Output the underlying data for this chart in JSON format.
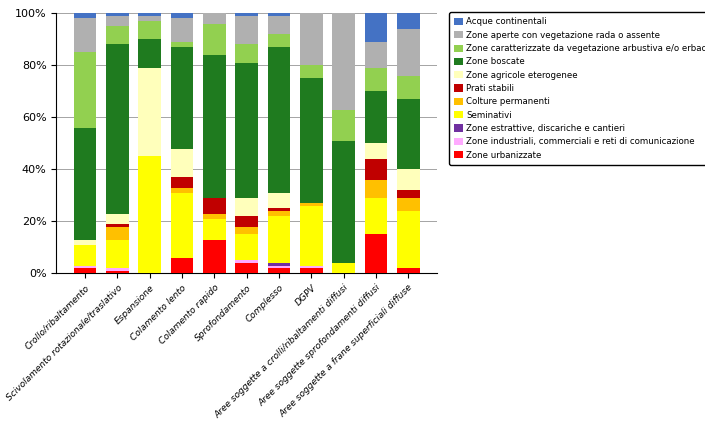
{
  "categories": [
    "Crollo/ribaltamento",
    "Scivolamento rotazionale/traslativo",
    "Espansione",
    "Colamento lento",
    "Colamento rapido",
    "Sprofondamento",
    "Complesso",
    "DGPV",
    "Aree soggette a crolli/ribaltamenti diffusi",
    "Aree soggette sprofondamenti diffusi",
    "Aree soggette a frane superficiali diffuse"
  ],
  "series": [
    {
      "name": "Zone urbanizzate",
      "color": "#ff0000",
      "values": [
        2,
        1,
        0,
        6,
        13,
        4,
        2,
        2,
        0,
        15,
        2
      ]
    },
    {
      "name": "Zone industriali, commerciali e reti di comunicazione",
      "color": "#ffaaff",
      "values": [
        1,
        1,
        0,
        0,
        0,
        1,
        1,
        1,
        0,
        0,
        0
      ]
    },
    {
      "name": "Zone estrattive, discariche e cantieri",
      "color": "#7030a0",
      "values": [
        0,
        0,
        0,
        0,
        0,
        0,
        1,
        0,
        0,
        0,
        0
      ]
    },
    {
      "name": "Seminativi",
      "color": "#ffff00",
      "values": [
        8,
        11,
        45,
        25,
        8,
        10,
        18,
        23,
        4,
        14,
        22
      ]
    },
    {
      "name": "Colture permanenti",
      "color": "#ffc000",
      "values": [
        0,
        5,
        0,
        2,
        2,
        3,
        2,
        1,
        0,
        7,
        5
      ]
    },
    {
      "name": "Prati stabili",
      "color": "#c00000",
      "values": [
        0,
        1,
        0,
        4,
        6,
        4,
        1,
        0,
        0,
        8,
        3
      ]
    },
    {
      "name": "Zone agricole eterogenee",
      "color": "#ffffbb",
      "values": [
        2,
        4,
        34,
        11,
        0,
        7,
        6,
        0,
        0,
        6,
        8
      ]
    },
    {
      "name": "Zone boscate",
      "color": "#1f7b1f",
      "values": [
        43,
        65,
        11,
        39,
        55,
        52,
        56,
        48,
        47,
        20,
        27
      ]
    },
    {
      "name": "Zone caratterizzate da vegetazione arbustiva e/o erbacea",
      "color": "#92d050",
      "values": [
        29,
        7,
        7,
        2,
        12,
        7,
        5,
        5,
        12,
        9,
        9
      ]
    },
    {
      "name": "Zone aperte con vegetazione rada o assente",
      "color": "#b0b0b0",
      "values": [
        13,
        4,
        2,
        9,
        4,
        11,
        7,
        20,
        37,
        10,
        18
      ]
    },
    {
      "name": "Acque continentali",
      "color": "#4472c4",
      "values": [
        2,
        1,
        1,
        2,
        0,
        1,
        1,
        0,
        0,
        11,
        6
      ]
    }
  ],
  "ylim": [
    0,
    100
  ],
  "yticks": [
    0,
    20,
    40,
    60,
    80,
    100
  ],
  "yticklabels": [
    "0%",
    "20%",
    "40%",
    "60%",
    "80%",
    "100%"
  ],
  "figsize": [
    7.05,
    4.41
  ],
  "dpi": 100
}
